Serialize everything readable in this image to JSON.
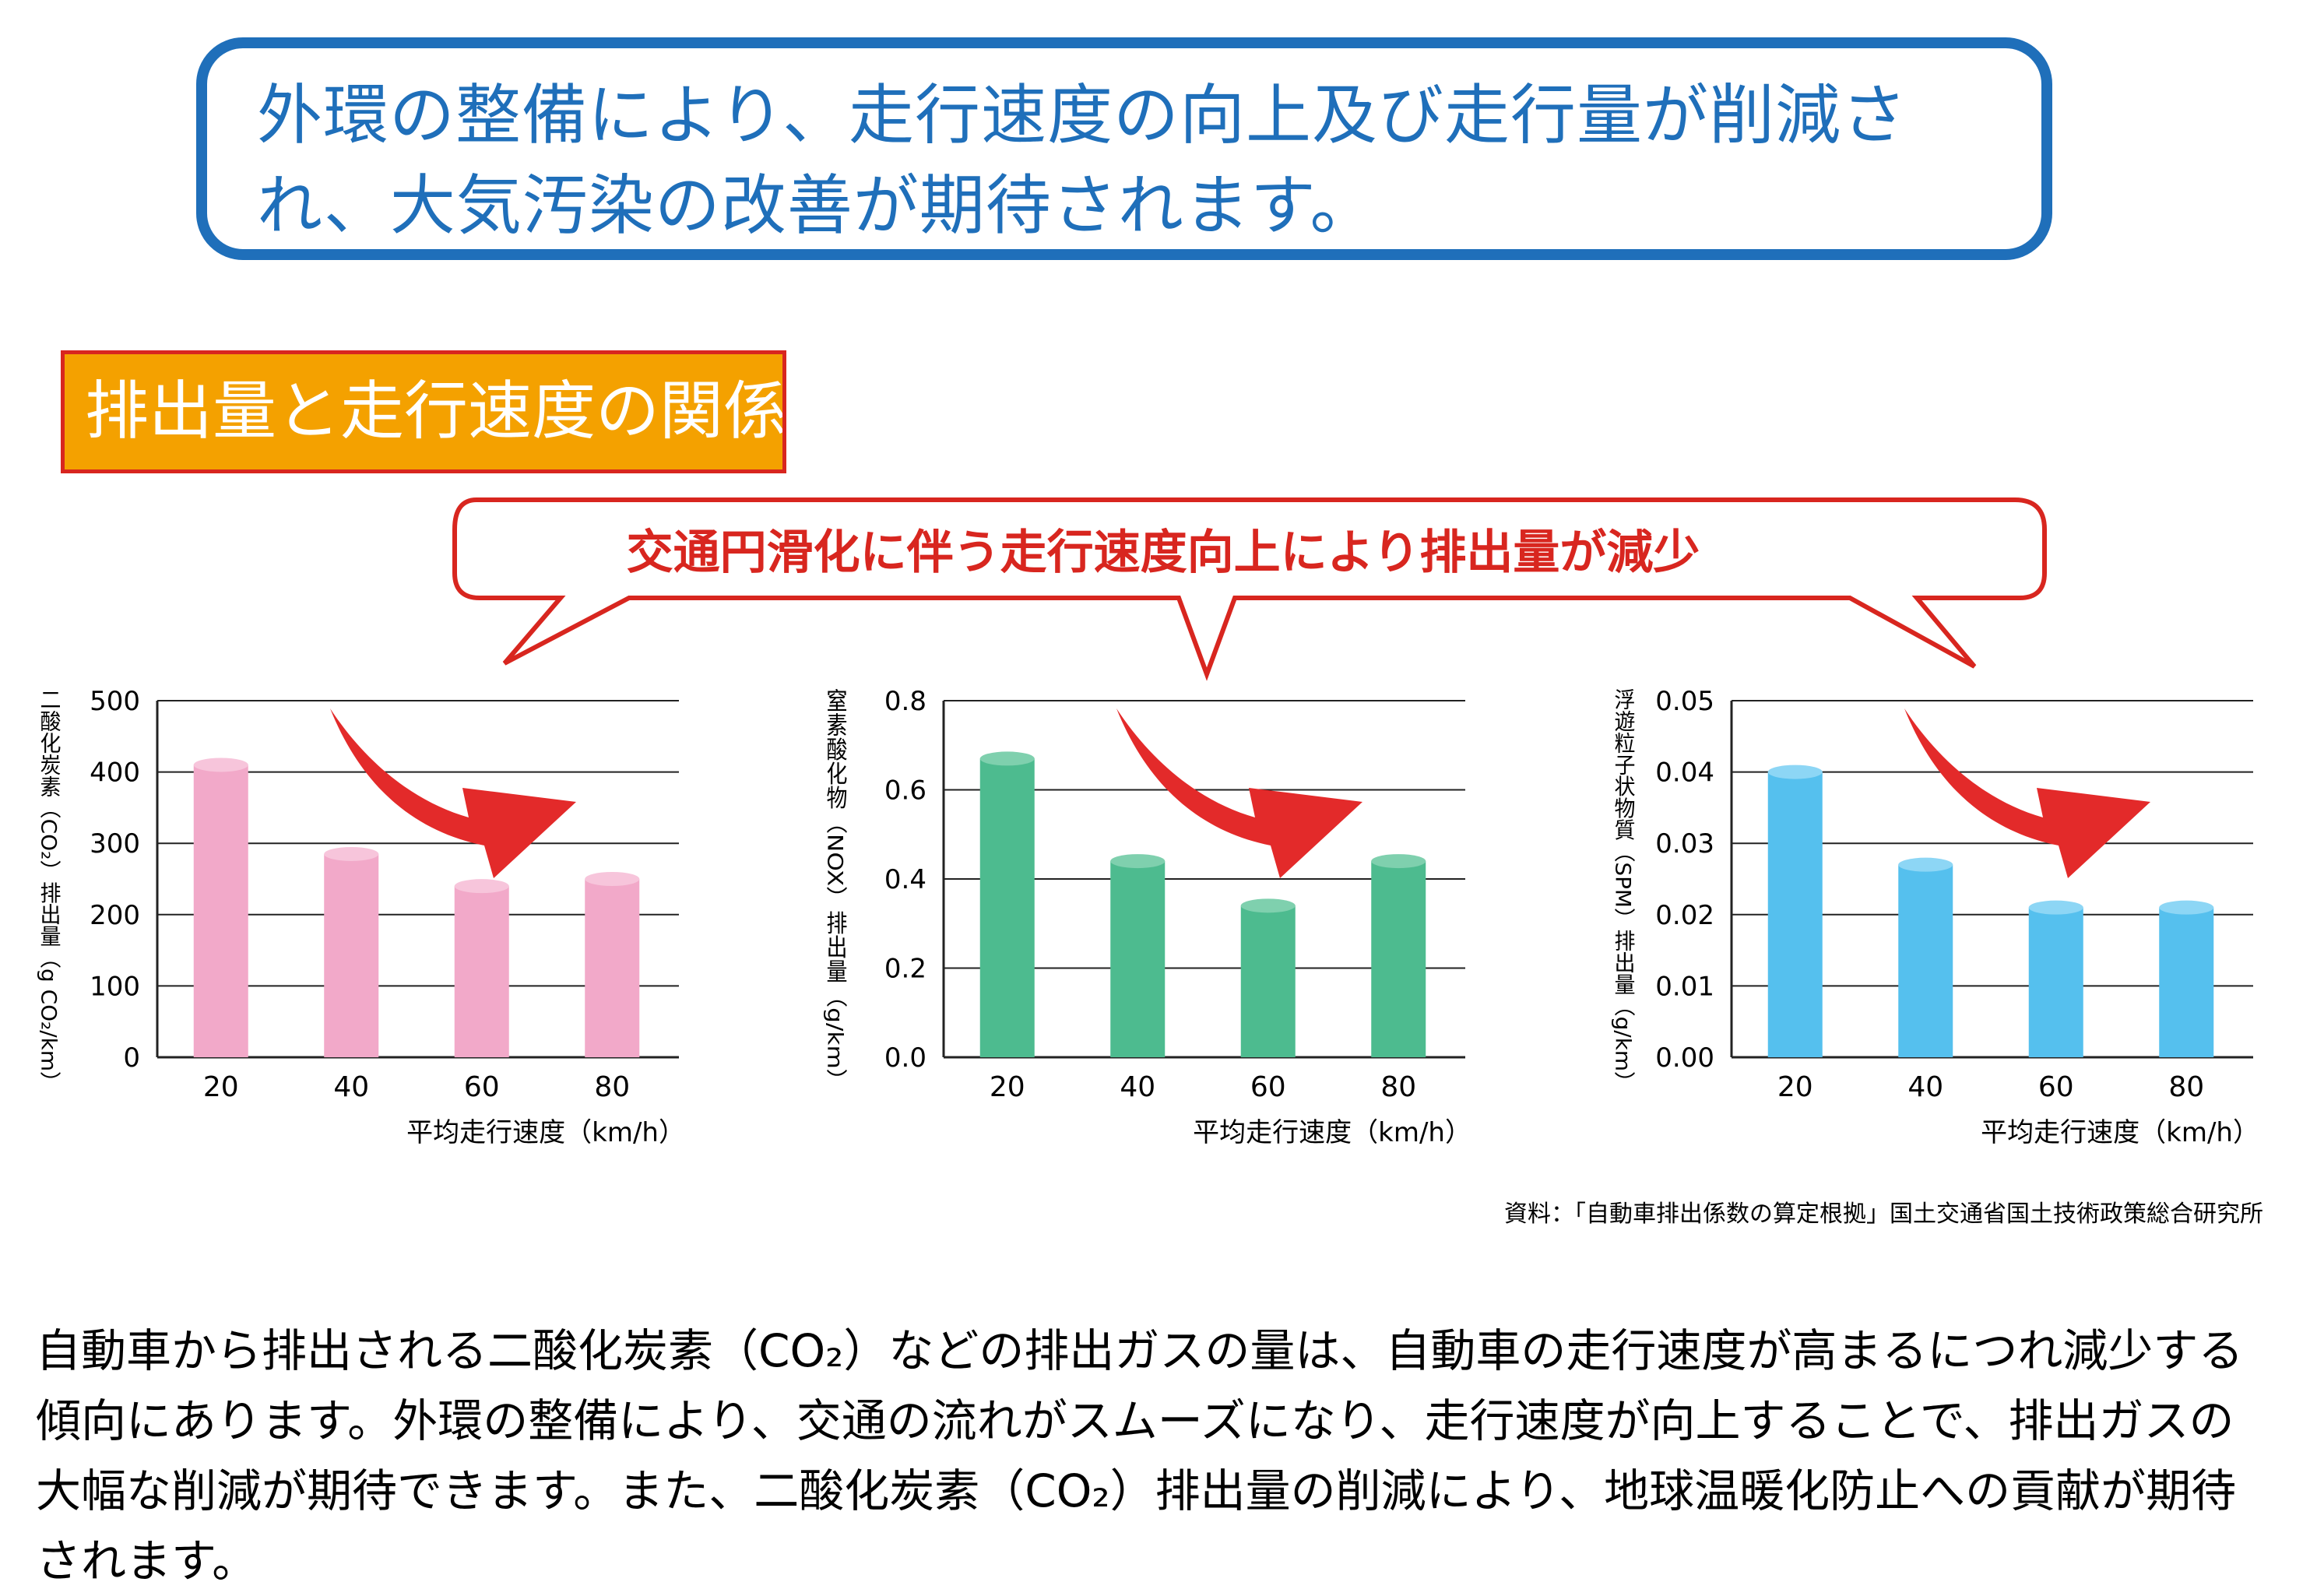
{
  "headline": "外環の整備により、走行速度の向上及び走行量が削減され、大気汚染の改善が期待されます。",
  "section_label": "排出量と走行速度の関係",
  "callout": "交通円滑化に伴う走行速度向上により排出量が減少",
  "source": "資料：「自動車排出係数の算定根拠」国土交通省国土技術政策総合研究所",
  "body": "自動車から排出される二酸化炭素（CO₂）などの排出ガスの量は、自動車の走行速度が高まるにつれ減少する傾向にあります。外環の整備により、交通の流れがスムーズになり、走行速度が向上することで、排出ガスの大幅な削減が期待できます。また、二酸化炭素（CO₂）排出量の削減により、地球温暖化防止への貢献が期待されます。",
  "arrow_color": "#e32a2a",
  "chart_data": [
    {
      "type": "bar",
      "categories": [
        "20",
        "40",
        "60",
        "80"
      ],
      "values": [
        410,
        285,
        240,
        250
      ],
      "ylim": [
        0,
        500
      ],
      "yticks": [
        "0",
        "100",
        "200",
        "300",
        "400",
        "500"
      ],
      "ylabel": "二酸化炭素（CO₂）排出量（g CO₂/km）",
      "xlabel": "平均走行速度（km/h）",
      "color": "#f2a9c9",
      "cap_color": "#f7c5db",
      "grid": true
    },
    {
      "type": "bar",
      "categories": [
        "20",
        "40",
        "60",
        "80"
      ],
      "values": [
        0.67,
        0.44,
        0.34,
        0.44
      ],
      "ylim": [
        0,
        0.8
      ],
      "yticks": [
        "0.0",
        "0.2",
        "0.4",
        "0.6",
        "0.8"
      ],
      "ylabel": "窒素酸化物（NOX）排出量（g/km）",
      "xlabel": "平均走行速度（km/h）",
      "color": "#4dbb8f",
      "cap_color": "#7fd0ae",
      "grid": true
    },
    {
      "type": "bar",
      "categories": [
        "20",
        "40",
        "60",
        "80"
      ],
      "values": [
        0.04,
        0.027,
        0.021,
        0.021
      ],
      "ylim": [
        0,
        0.05
      ],
      "yticks": [
        "0.00",
        "0.01",
        "0.02",
        "0.03",
        "0.04",
        "0.05"
      ],
      "ylabel": "浮遊粒子状物質（SPM）排出量（g/km）",
      "xlabel": "平均走行速度（km/h）",
      "color": "#55c0ee",
      "cap_color": "#8dd6f5",
      "grid": true
    }
  ]
}
